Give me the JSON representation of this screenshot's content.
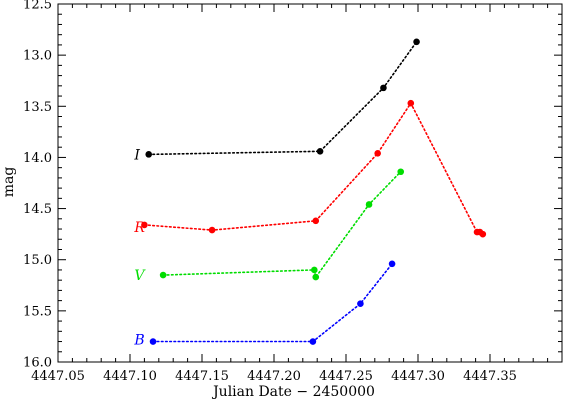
{
  "chart_data": {
    "type": "line",
    "title": "",
    "xlabel": "Julian Date − 2450000",
    "ylabel": "mag",
    "xlim": [
      4447.05,
      4447.4
    ],
    "ylim": [
      12.5,
      16.0
    ],
    "y_inverted": true,
    "x_ticks": [
      "4447.05",
      "4447.10",
      "4447.15",
      "4447.20",
      "4447.25",
      "4447.30",
      "4447.35"
    ],
    "y_ticks": [
      "12.5",
      "13.0",
      "13.5",
      "14.0",
      "14.5",
      "15.0",
      "15.5",
      "16.0"
    ],
    "series": [
      {
        "name": "I",
        "color": "#000000",
        "x": [
          4447.113,
          4447.232,
          4447.276,
          4447.299
        ],
        "y": [
          13.97,
          13.94,
          13.32,
          12.87
        ]
      },
      {
        "name": "R",
        "color": "#ff0000",
        "x": [
          4447.11,
          4447.157,
          4447.229,
          4447.272,
          4447.295,
          4447.341,
          4447.343,
          4447.345
        ],
        "y": [
          14.66,
          14.71,
          14.62,
          13.96,
          13.47,
          14.73,
          14.73,
          14.75
        ]
      },
      {
        "name": "V",
        "color": "#00dd00",
        "x": [
          4447.123,
          4447.228,
          4447.229,
          4447.266,
          4447.288
        ],
        "y": [
          15.15,
          15.1,
          15.17,
          14.46,
          14.14
        ]
      },
      {
        "name": "B",
        "color": "#0000ff",
        "x": [
          4447.116,
          4447.227,
          4447.26,
          4447.282
        ],
        "y": [
          15.8,
          15.8,
          15.43,
          15.04
        ]
      }
    ],
    "band_labels": [
      {
        "text": "I",
        "color": "#000000",
        "x": 4447.103,
        "y": 13.97
      },
      {
        "text": "R",
        "color": "#ff0000",
        "x": 4447.103,
        "y": 14.68
      },
      {
        "text": "V",
        "color": "#00dd00",
        "x": 4447.103,
        "y": 15.15
      },
      {
        "text": "B",
        "color": "#0000ff",
        "x": 4447.103,
        "y": 15.78
      }
    ],
    "grid": false,
    "legend": "none"
  }
}
